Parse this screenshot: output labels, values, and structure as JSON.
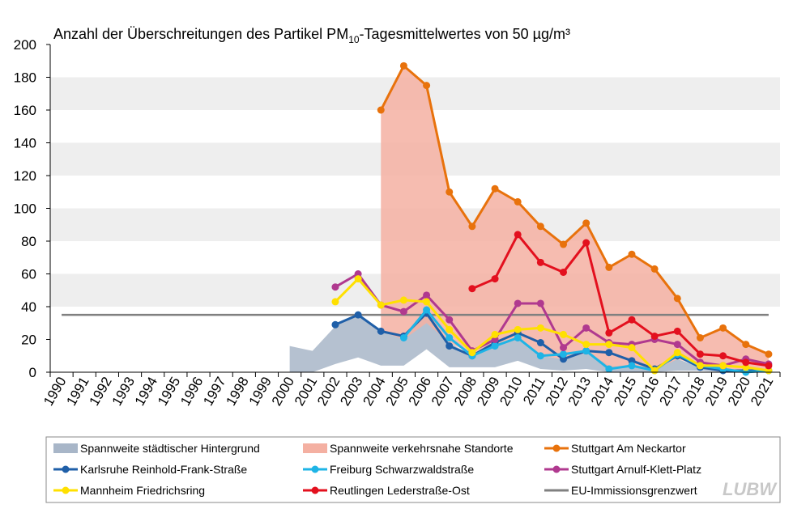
{
  "chart_data": {
    "type": "line",
    "title": {
      "main": "Anzahl der Überschreitungen des Partikel PM",
      "sub": "10",
      "rest": "-Tagesmittelwertes von 50 µg/m³"
    },
    "categories": [
      "1990",
      "1991",
      "1992",
      "1993",
      "1994",
      "1995",
      "1996",
      "1997",
      "1998",
      "1999",
      "2000",
      "2001",
      "2002",
      "2003",
      "2004",
      "2005",
      "2006",
      "2007",
      "2008",
      "2009",
      "2010",
      "2011",
      "2012",
      "2013",
      "2014",
      "2015",
      "2016",
      "2017",
      "2018",
      "2019",
      "2020",
      "2021"
    ],
    "ylim": [
      0,
      200
    ],
    "yticks": [
      0,
      20,
      40,
      60,
      80,
      100,
      120,
      140,
      160,
      180,
      200
    ],
    "bands": [
      [
        40,
        60
      ],
      [
        80,
        100
      ],
      [
        120,
        140
      ],
      [
        160,
        180
      ]
    ],
    "series": [
      {
        "name": "Spannweite städtischer Hintergrund",
        "kind": "range",
        "color": "#a8b6c8",
        "low": [
          null,
          null,
          null,
          null,
          null,
          null,
          null,
          null,
          null,
          null,
          0,
          0,
          5,
          9,
          4,
          4,
          14,
          3,
          3,
          3,
          7,
          2,
          1,
          2,
          0,
          0,
          0,
          1,
          1,
          0,
          0,
          0
        ],
        "high": [
          null,
          null,
          null,
          null,
          null,
          null,
          null,
          null,
          null,
          null,
          16,
          13,
          28,
          35,
          25,
          22,
          36,
          18,
          10,
          16,
          21,
          10,
          8,
          13,
          4,
          3,
          2,
          8,
          3,
          2,
          1,
          1
        ]
      },
      {
        "name": "Spannweite verkehrsnahe Standorte",
        "kind": "range",
        "color": "#f4b0a2",
        "low": [
          null,
          null,
          null,
          null,
          null,
          null,
          null,
          null,
          null,
          null,
          null,
          null,
          null,
          null,
          25,
          20,
          30,
          18,
          11,
          16,
          20,
          10,
          8,
          13,
          2,
          4,
          1,
          8,
          4,
          2,
          1,
          1
        ],
        "high": [
          null,
          null,
          null,
          null,
          null,
          null,
          null,
          null,
          null,
          null,
          null,
          null,
          null,
          null,
          160,
          187,
          175,
          110,
          89,
          112,
          104,
          89,
          78,
          91,
          64,
          72,
          63,
          45,
          21,
          27,
          17,
          11
        ]
      },
      {
        "name": "Stuttgart Am Neckartor",
        "kind": "line",
        "color": "#e8720c",
        "values": [
          null,
          null,
          null,
          null,
          null,
          null,
          null,
          null,
          null,
          null,
          null,
          null,
          null,
          null,
          160,
          187,
          175,
          110,
          89,
          112,
          104,
          89,
          78,
          91,
          64,
          72,
          63,
          45,
          21,
          27,
          17,
          11
        ]
      },
      {
        "name": "Karlsruhe Reinhold-Frank-Straße",
        "kind": "line",
        "color": "#1f5fa8",
        "values": [
          null,
          null,
          null,
          null,
          null,
          null,
          null,
          null,
          null,
          null,
          null,
          null,
          29,
          35,
          25,
          22,
          36,
          16,
          10,
          18,
          24,
          18,
          8,
          13,
          12,
          7,
          2,
          10,
          3,
          1,
          1,
          1
        ]
      },
      {
        "name": "Freiburg Schwarzwaldstraße",
        "kind": "line",
        "color": "#1eb4e6",
        "values": [
          null,
          null,
          null,
          null,
          null,
          null,
          null,
          null,
          null,
          null,
          null,
          null,
          null,
          null,
          null,
          21,
          38,
          21,
          10,
          16,
          21,
          10,
          11,
          13,
          2,
          4,
          1,
          11,
          4,
          2,
          0,
          1
        ]
      },
      {
        "name": "Stuttgart Arnulf-Klett-Platz",
        "kind": "line",
        "color": "#b0398f",
        "values": [
          null,
          null,
          null,
          null,
          null,
          null,
          null,
          null,
          null,
          null,
          null,
          null,
          52,
          60,
          41,
          37,
          47,
          32,
          13,
          20,
          42,
          42,
          15,
          27,
          18,
          17,
          20,
          17,
          6,
          4,
          8,
          5
        ]
      },
      {
        "name": "Mannheim Friedrichsring",
        "kind": "line",
        "color": "#ffe000",
        "values": [
          null,
          null,
          null,
          null,
          null,
          null,
          null,
          null,
          null,
          null,
          null,
          null,
          43,
          57,
          41,
          44,
          43,
          26,
          12,
          23,
          26,
          27,
          23,
          17,
          17,
          15,
          1,
          12,
          4,
          4,
          3,
          1
        ]
      },
      {
        "name": "Reutlingen Lederstraße-Ost",
        "kind": "line",
        "color": "#e3101e",
        "values": [
          null,
          null,
          null,
          null,
          null,
          null,
          null,
          null,
          null,
          null,
          null,
          null,
          null,
          null,
          null,
          null,
          null,
          null,
          51,
          57,
          84,
          67,
          61,
          79,
          24,
          32,
          22,
          25,
          11,
          10,
          6,
          4
        ]
      },
      {
        "name": "EU-Immissionsgrenzwert",
        "kind": "limit",
        "color": "#808080",
        "value": 35
      }
    ],
    "logo": "LUBW"
  }
}
